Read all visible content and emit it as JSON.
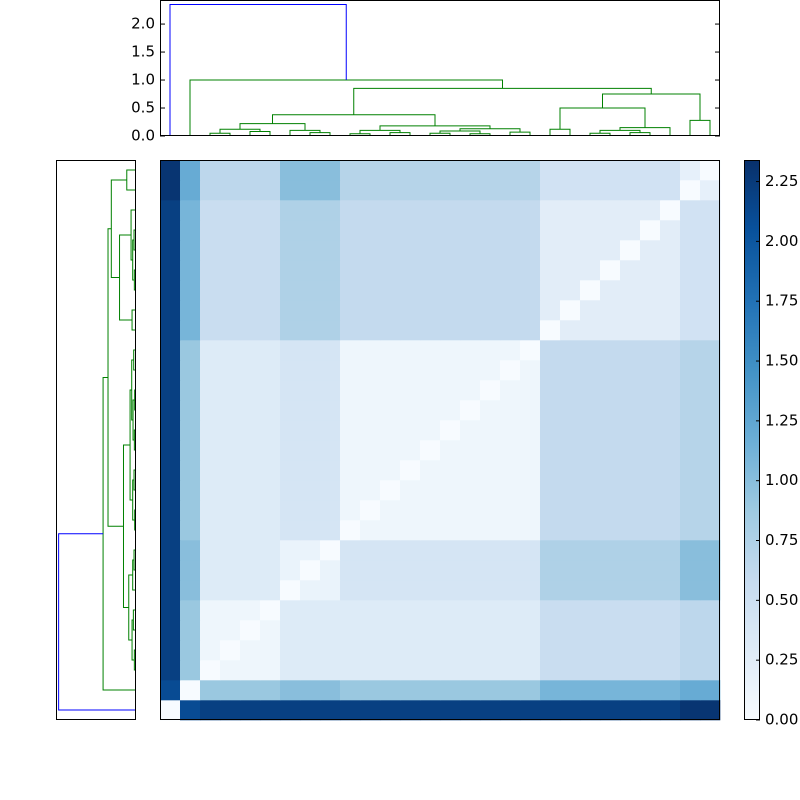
{
  "chart_data": {
    "type": "heatmap",
    "cmap": "Blues",
    "clim": [
      0,
      2.34
    ],
    "cticks": [
      {
        "value": 0,
        "label": "0.00"
      },
      {
        "value": 0.25,
        "label": "0.25"
      },
      {
        "value": 0.5,
        "label": "0.50"
      },
      {
        "value": 0.75,
        "label": "0.75"
      },
      {
        "value": 1,
        "label": "1.00"
      },
      {
        "value": 1.25,
        "label": "1.25"
      },
      {
        "value": 1.5,
        "label": "1.50"
      },
      {
        "value": 1.75,
        "label": "1.75"
      },
      {
        "value": 2,
        "label": "2.00"
      },
      {
        "value": 2.25,
        "label": "2.25"
      }
    ],
    "matrix": [
      [
        0,
        2.1,
        2.2,
        2.2,
        2.2,
        2.2,
        2.2,
        2.2,
        2.2,
        2.2,
        2.2,
        2.2,
        2.2,
        2.2,
        2.2,
        2.2,
        2.2,
        2.2,
        2.2,
        2.2,
        2.2,
        2.2,
        2.2,
        2.2,
        2.2,
        2.2,
        2.3,
        2.3
      ],
      [
        2.1,
        0,
        0.9,
        0.9,
        0.9,
        0.9,
        1.0,
        1.0,
        1.0,
        0.9,
        0.9,
        0.9,
        0.9,
        0.9,
        0.9,
        0.9,
        0.9,
        0.9,
        0.9,
        1.1,
        1.1,
        1.1,
        1.1,
        1.1,
        1.1,
        1.1,
        1.2,
        1.2
      ],
      [
        2.2,
        0.9,
        0,
        0.1,
        0.1,
        0.1,
        0.3,
        0.3,
        0.3,
        0.3,
        0.3,
        0.3,
        0.3,
        0.3,
        0.3,
        0.3,
        0.3,
        0.3,
        0.3,
        0.55,
        0.55,
        0.55,
        0.55,
        0.55,
        0.55,
        0.55,
        0.65,
        0.65
      ],
      [
        2.2,
        0.9,
        0.1,
        0,
        0.1,
        0.1,
        0.3,
        0.3,
        0.3,
        0.3,
        0.3,
        0.3,
        0.3,
        0.3,
        0.3,
        0.3,
        0.3,
        0.3,
        0.3,
        0.55,
        0.55,
        0.55,
        0.55,
        0.55,
        0.55,
        0.55,
        0.65,
        0.65
      ],
      [
        2.2,
        0.9,
        0.1,
        0.1,
        0,
        0.1,
        0.3,
        0.3,
        0.3,
        0.3,
        0.3,
        0.3,
        0.3,
        0.3,
        0.3,
        0.3,
        0.3,
        0.3,
        0.3,
        0.55,
        0.55,
        0.55,
        0.55,
        0.55,
        0.55,
        0.55,
        0.65,
        0.65
      ],
      [
        2.2,
        0.9,
        0.1,
        0.1,
        0.1,
        0,
        0.3,
        0.3,
        0.3,
        0.3,
        0.3,
        0.3,
        0.3,
        0.3,
        0.3,
        0.3,
        0.3,
        0.3,
        0.3,
        0.55,
        0.55,
        0.55,
        0.55,
        0.55,
        0.55,
        0.55,
        0.65,
        0.65
      ],
      [
        2.2,
        1.0,
        0.3,
        0.3,
        0.3,
        0.3,
        0,
        0.15,
        0.15,
        0.4,
        0.4,
        0.4,
        0.4,
        0.4,
        0.4,
        0.4,
        0.4,
        0.4,
        0.4,
        0.75,
        0.75,
        0.75,
        0.75,
        0.75,
        0.75,
        0.75,
        1.0,
        1.0
      ],
      [
        2.2,
        1.0,
        0.3,
        0.3,
        0.3,
        0.3,
        0.15,
        0,
        0.15,
        0.4,
        0.4,
        0.4,
        0.4,
        0.4,
        0.4,
        0.4,
        0.4,
        0.4,
        0.4,
        0.75,
        0.75,
        0.75,
        0.75,
        0.75,
        0.75,
        0.75,
        1.0,
        1.0
      ],
      [
        2.2,
        1.0,
        0.3,
        0.3,
        0.3,
        0.3,
        0.15,
        0.15,
        0,
        0.4,
        0.4,
        0.4,
        0.4,
        0.4,
        0.4,
        0.4,
        0.4,
        0.4,
        0.4,
        0.75,
        0.75,
        0.75,
        0.75,
        0.75,
        0.75,
        0.75,
        1.0,
        1.0
      ],
      [
        2.2,
        0.9,
        0.3,
        0.3,
        0.3,
        0.3,
        0.4,
        0.4,
        0.4,
        0,
        0.1,
        0.1,
        0.1,
        0.1,
        0.1,
        0.1,
        0.1,
        0.1,
        0.1,
        0.6,
        0.6,
        0.6,
        0.6,
        0.6,
        0.6,
        0.6,
        0.7,
        0.7
      ],
      [
        2.2,
        0.9,
        0.3,
        0.3,
        0.3,
        0.3,
        0.4,
        0.4,
        0.4,
        0.1,
        0,
        0.1,
        0.1,
        0.1,
        0.1,
        0.1,
        0.1,
        0.1,
        0.1,
        0.6,
        0.6,
        0.6,
        0.6,
        0.6,
        0.6,
        0.6,
        0.7,
        0.7
      ],
      [
        2.2,
        0.9,
        0.3,
        0.3,
        0.3,
        0.3,
        0.4,
        0.4,
        0.4,
        0.1,
        0.1,
        0,
        0.1,
        0.1,
        0.1,
        0.1,
        0.1,
        0.1,
        0.1,
        0.6,
        0.6,
        0.6,
        0.6,
        0.6,
        0.6,
        0.6,
        0.7,
        0.7
      ],
      [
        2.2,
        0.9,
        0.3,
        0.3,
        0.3,
        0.3,
        0.4,
        0.4,
        0.4,
        0.1,
        0.1,
        0.1,
        0,
        0.1,
        0.1,
        0.1,
        0.1,
        0.1,
        0.1,
        0.6,
        0.6,
        0.6,
        0.6,
        0.6,
        0.6,
        0.6,
        0.7,
        0.7
      ],
      [
        2.2,
        0.9,
        0.3,
        0.3,
        0.3,
        0.3,
        0.4,
        0.4,
        0.4,
        0.1,
        0.1,
        0.1,
        0.1,
        0,
        0.1,
        0.1,
        0.1,
        0.1,
        0.1,
        0.6,
        0.6,
        0.6,
        0.6,
        0.6,
        0.6,
        0.6,
        0.7,
        0.7
      ],
      [
        2.2,
        0.9,
        0.3,
        0.3,
        0.3,
        0.3,
        0.4,
        0.4,
        0.4,
        0.1,
        0.1,
        0.1,
        0.1,
        0.1,
        0,
        0.1,
        0.1,
        0.1,
        0.1,
        0.6,
        0.6,
        0.6,
        0.6,
        0.6,
        0.6,
        0.6,
        0.7,
        0.7
      ],
      [
        2.2,
        0.9,
        0.3,
        0.3,
        0.3,
        0.3,
        0.4,
        0.4,
        0.4,
        0.1,
        0.1,
        0.1,
        0.1,
        0.1,
        0.1,
        0,
        0.1,
        0.1,
        0.1,
        0.6,
        0.6,
        0.6,
        0.6,
        0.6,
        0.6,
        0.6,
        0.7,
        0.7
      ],
      [
        2.2,
        0.9,
        0.3,
        0.3,
        0.3,
        0.3,
        0.4,
        0.4,
        0.4,
        0.1,
        0.1,
        0.1,
        0.1,
        0.1,
        0.1,
        0.1,
        0,
        0.1,
        0.1,
        0.6,
        0.6,
        0.6,
        0.6,
        0.6,
        0.6,
        0.6,
        0.7,
        0.7
      ],
      [
        2.2,
        0.9,
        0.3,
        0.3,
        0.3,
        0.3,
        0.4,
        0.4,
        0.4,
        0.1,
        0.1,
        0.1,
        0.1,
        0.1,
        0.1,
        0.1,
        0.1,
        0,
        0.1,
        0.6,
        0.6,
        0.6,
        0.6,
        0.6,
        0.6,
        0.6,
        0.7,
        0.7
      ],
      [
        2.2,
        0.9,
        0.3,
        0.3,
        0.3,
        0.3,
        0.4,
        0.4,
        0.4,
        0.1,
        0.1,
        0.1,
        0.1,
        0.1,
        0.1,
        0.1,
        0.1,
        0.1,
        0,
        0.6,
        0.6,
        0.6,
        0.6,
        0.6,
        0.6,
        0.6,
        0.7,
        0.7
      ],
      [
        2.2,
        1.1,
        0.55,
        0.55,
        0.55,
        0.55,
        0.75,
        0.75,
        0.75,
        0.6,
        0.6,
        0.6,
        0.6,
        0.6,
        0.6,
        0.6,
        0.6,
        0.6,
        0.6,
        0,
        0.25,
        0.25,
        0.25,
        0.25,
        0.25,
        0.25,
        0.45,
        0.45
      ],
      [
        2.2,
        1.1,
        0.55,
        0.55,
        0.55,
        0.55,
        0.75,
        0.75,
        0.75,
        0.6,
        0.6,
        0.6,
        0.6,
        0.6,
        0.6,
        0.6,
        0.6,
        0.6,
        0.6,
        0.25,
        0,
        0.25,
        0.25,
        0.25,
        0.25,
        0.25,
        0.45,
        0.45
      ],
      [
        2.2,
        1.1,
        0.55,
        0.55,
        0.55,
        0.55,
        0.75,
        0.75,
        0.75,
        0.6,
        0.6,
        0.6,
        0.6,
        0.6,
        0.6,
        0.6,
        0.6,
        0.6,
        0.6,
        0.25,
        0.25,
        0,
        0.25,
        0.25,
        0.25,
        0.25,
        0.45,
        0.45
      ],
      [
        2.2,
        1.1,
        0.55,
        0.55,
        0.55,
        0.55,
        0.75,
        0.75,
        0.75,
        0.6,
        0.6,
        0.6,
        0.6,
        0.6,
        0.6,
        0.6,
        0.6,
        0.6,
        0.6,
        0.25,
        0.25,
        0.25,
        0,
        0.25,
        0.25,
        0.25,
        0.45,
        0.45
      ],
      [
        2.2,
        1.1,
        0.55,
        0.55,
        0.55,
        0.55,
        0.75,
        0.75,
        0.75,
        0.6,
        0.6,
        0.6,
        0.6,
        0.6,
        0.6,
        0.6,
        0.6,
        0.6,
        0.6,
        0.25,
        0.25,
        0.25,
        0.25,
        0,
        0.25,
        0.25,
        0.45,
        0.45
      ],
      [
        2.2,
        1.1,
        0.55,
        0.55,
        0.55,
        0.55,
        0.75,
        0.75,
        0.75,
        0.6,
        0.6,
        0.6,
        0.6,
        0.6,
        0.6,
        0.6,
        0.6,
        0.6,
        0.6,
        0.25,
        0.25,
        0.25,
        0.25,
        0.25,
        0,
        0.25,
        0.45,
        0.45
      ],
      [
        2.2,
        1.1,
        0.55,
        0.55,
        0.55,
        0.55,
        0.75,
        0.75,
        0.75,
        0.6,
        0.6,
        0.6,
        0.6,
        0.6,
        0.6,
        0.6,
        0.6,
        0.6,
        0.6,
        0.25,
        0.25,
        0.25,
        0.25,
        0.25,
        0.25,
        0,
        0.45,
        0.45
      ],
      [
        2.3,
        1.2,
        0.65,
        0.65,
        0.65,
        0.65,
        1.0,
        1.0,
        1.0,
        0.7,
        0.7,
        0.7,
        0.7,
        0.7,
        0.7,
        0.7,
        0.7,
        0.7,
        0.7,
        0.45,
        0.45,
        0.45,
        0.45,
        0.45,
        0.45,
        0.45,
        0,
        0.2
      ],
      [
        2.3,
        1.2,
        0.65,
        0.65,
        0.65,
        0.65,
        1.0,
        1.0,
        1.0,
        0.7,
        0.7,
        0.7,
        0.7,
        0.7,
        0.7,
        0.7,
        0.7,
        0.7,
        0.7,
        0.45,
        0.45,
        0.45,
        0.45,
        0.45,
        0.45,
        0.45,
        0.2,
        0
      ]
    ],
    "dendrogram": {
      "leaf_lim": [
        0,
        28
      ],
      "hlim": [
        0,
        2.43
      ],
      "hticks": [
        {
          "value": 0,
          "label": "0.0"
        },
        {
          "value": 0.5,
          "label": "0.5"
        },
        {
          "value": 1,
          "label": "1.0"
        },
        {
          "value": 1.5,
          "label": "1.5"
        },
        {
          "value": 2,
          "label": "2.0"
        }
      ],
      "color": "#008000",
      "root_color": "#0000ff",
      "links": [
        {
          "x": [
            2.5,
            3.5
          ],
          "bottom": [
            0,
            0
          ],
          "height": 0.05
        },
        {
          "x": [
            4.5,
            5.5
          ],
          "bottom": [
            0,
            0
          ],
          "height": 0.08
        },
        {
          "x": [
            3.0,
            5.0
          ],
          "bottom": [
            0.05,
            0.08
          ],
          "height": 0.12
        },
        {
          "x": [
            7.5,
            8.5
          ],
          "bottom": [
            0,
            0
          ],
          "height": 0.06
        },
        {
          "x": [
            6.5,
            8.0
          ],
          "bottom": [
            0,
            0.06
          ],
          "height": 0.1
        },
        {
          "x": [
            4.0,
            7.25
          ],
          "bottom": [
            0.12,
            0.1
          ],
          "height": 0.22
        },
        {
          "x": [
            9.5,
            10.5
          ],
          "bottom": [
            0,
            0
          ],
          "height": 0.04
        },
        {
          "x": [
            11.5,
            12.5
          ],
          "bottom": [
            0,
            0
          ],
          "height": 0.06
        },
        {
          "x": [
            10.0,
            12.0
          ],
          "bottom": [
            0.04,
            0.06
          ],
          "height": 0.1
        },
        {
          "x": [
            13.5,
            14.5
          ],
          "bottom": [
            0,
            0
          ],
          "height": 0.05
        },
        {
          "x": [
            15.5,
            16.5
          ],
          "bottom": [
            0,
            0
          ],
          "height": 0.04
        },
        {
          "x": [
            14.0,
            16.0
          ],
          "bottom": [
            0.05,
            0.04
          ],
          "height": 0.09
        },
        {
          "x": [
            17.5,
            18.5
          ],
          "bottom": [
            0,
            0
          ],
          "height": 0.07
        },
        {
          "x": [
            15.0,
            18.0
          ],
          "bottom": [
            0.09,
            0.07
          ],
          "height": 0.13
        },
        {
          "x": [
            11.0,
            16.5
          ],
          "bottom": [
            0.1,
            0.13
          ],
          "height": 0.18
        },
        {
          "x": [
            5.625,
            13.75
          ],
          "bottom": [
            0.22,
            0.18
          ],
          "height": 0.38
        },
        {
          "x": [
            19.5,
            20.5
          ],
          "bottom": [
            0,
            0
          ],
          "height": 0.12
        },
        {
          "x": [
            21.5,
            22.5
          ],
          "bottom": [
            0,
            0
          ],
          "height": 0.05
        },
        {
          "x": [
            23.5,
            24.5
          ],
          "bottom": [
            0,
            0
          ],
          "height": 0.06
        },
        {
          "x": [
            22.0,
            24.0
          ],
          "bottom": [
            0.05,
            0.06
          ],
          "height": 0.1
        },
        {
          "x": [
            23.0,
            25.5
          ],
          "bottom": [
            0.1,
            0
          ],
          "height": 0.15
        },
        {
          "x": [
            20.0,
            24.25
          ],
          "bottom": [
            0.12,
            0.15
          ],
          "height": 0.5
        },
        {
          "x": [
            26.5,
            27.5
          ],
          "bottom": [
            0,
            0
          ],
          "height": 0.28
        },
        {
          "x": [
            22.125,
            27.0
          ],
          "bottom": [
            0.5,
            0.28
          ],
          "height": 0.75
        },
        {
          "x": [
            9.6875,
            24.5625
          ],
          "bottom": [
            0.38,
            0.75
          ],
          "height": 0.85
        },
        {
          "x": [
            1.5,
            17.125
          ],
          "bottom": [
            0,
            0.85
          ],
          "height": 1.0
        },
        {
          "x": [
            0.5,
            9.3125
          ],
          "bottom": [
            0,
            1.0
          ],
          "height": 2.35
        }
      ]
    }
  }
}
